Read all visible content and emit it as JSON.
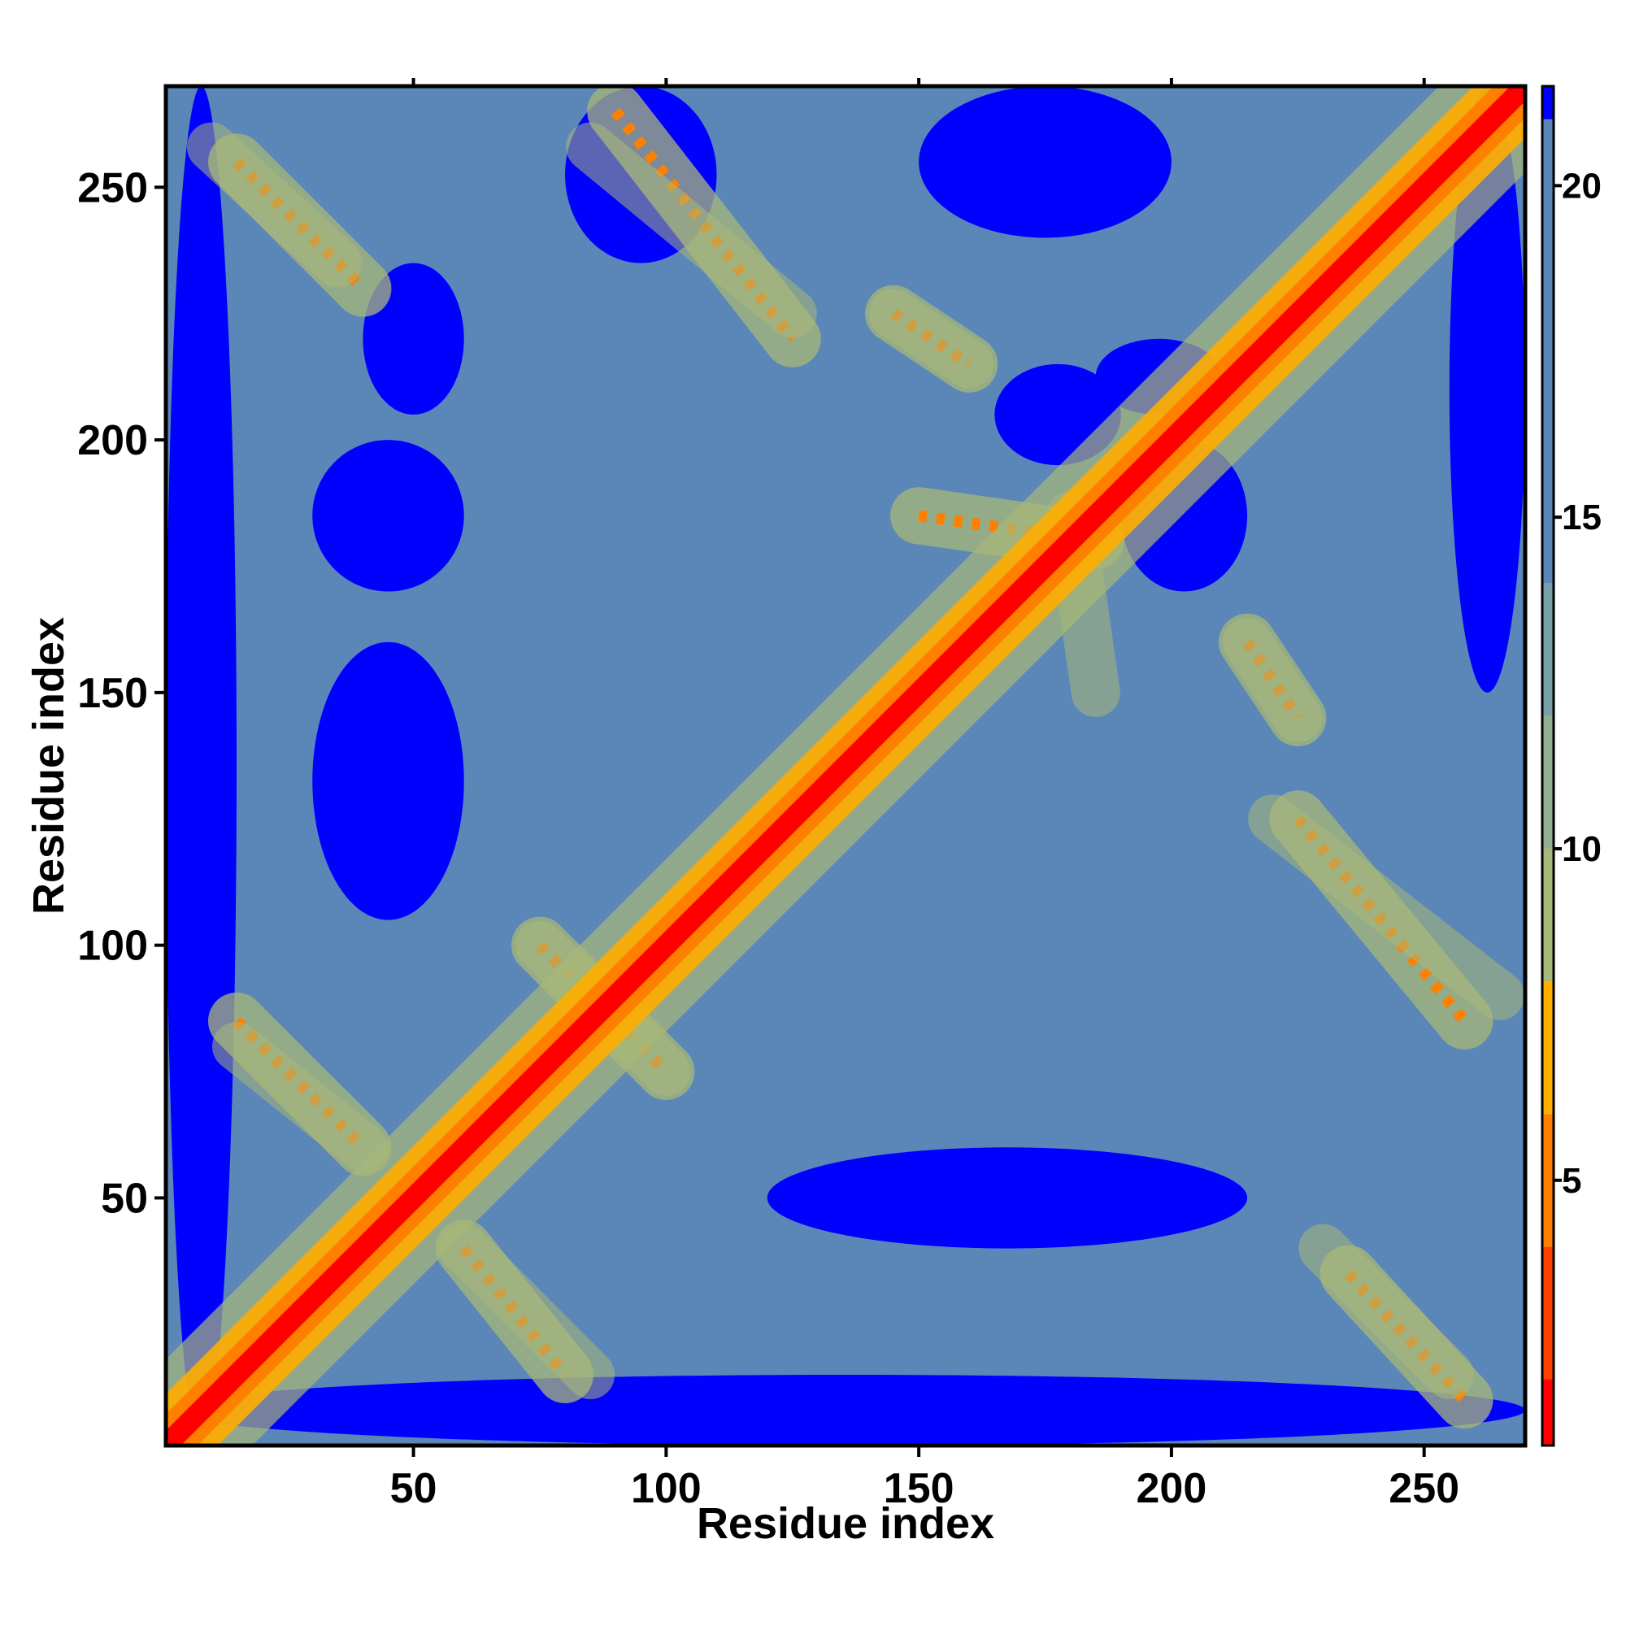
{
  "chart_data": {
    "type": "heatmap",
    "title": "",
    "xlabel": "Residue index",
    "ylabel": "Residue index",
    "xlim": [
      1,
      270
    ],
    "ylim": [
      1,
      270
    ],
    "x_ticks": [
      50,
      100,
      150,
      200,
      250
    ],
    "y_ticks": [
      50,
      100,
      150,
      200,
      250
    ],
    "x_tick_labels": [
      "50",
      "100",
      "150",
      "200",
      "250"
    ],
    "y_tick_labels": [
      "50",
      "100",
      "150",
      "200",
      "250"
    ],
    "colorbar": {
      "range": [
        1,
        21.5
      ],
      "ticks": [
        5,
        10,
        15,
        20
      ],
      "tick_labels": [
        "5",
        "10",
        "15",
        "20"
      ],
      "bands": [
        {
          "from": 1,
          "to": 2,
          "color": "#ff0000"
        },
        {
          "from": 2,
          "to": 4,
          "color": "#ff4000"
        },
        {
          "from": 4,
          "to": 6,
          "color": "#ff7f00"
        },
        {
          "from": 6,
          "to": 8,
          "color": "#ffae00"
        },
        {
          "from": 8,
          "to": 10,
          "color": "#a8b878"
        },
        {
          "from": 10,
          "to": 12,
          "color": "#90b090"
        },
        {
          "from": 12,
          "to": 14,
          "color": "#78a0a8"
        },
        {
          "from": 14,
          "to": 21,
          "color": "#5b87b8"
        },
        {
          "from": 21,
          "to": 21.5,
          "color": "#0000ff"
        }
      ]
    },
    "value_meaning": "pairwise residue distance; diagonal ~1 (red), far pairs >21 (blue)",
    "off_diagonal_strands": [
      {
        "x": [
          15,
          40
        ],
        "y": [
          255,
          230
        ]
      },
      {
        "x": [
          90,
          125
        ],
        "y": [
          265,
          220
        ]
      },
      {
        "x": [
          60,
          80
        ],
        "y": [
          40,
          15
        ]
      },
      {
        "x": [
          15,
          40
        ],
        "y": [
          85,
          60
        ]
      },
      {
        "x": [
          225,
          258
        ],
        "y": [
          125,
          85
        ]
      },
      {
        "x": [
          235,
          258
        ],
        "y": [
          35,
          10
        ]
      },
      {
        "x": [
          75,
          100
        ],
        "y": [
          100,
          75
        ]
      },
      {
        "x": [
          145,
          160
        ],
        "y": [
          225,
          215
        ]
      },
      {
        "x": [
          215,
          225
        ],
        "y": [
          160,
          145
        ]
      },
      {
        "x": [
          150,
          185
        ],
        "y": [
          185,
          180
        ]
      }
    ],
    "blue_regions": [
      {
        "x": [
          1,
          15
        ],
        "y": [
          1,
          270
        ]
      },
      {
        "x": [
          1,
          270
        ],
        "y": [
          1,
          15
        ]
      },
      {
        "x": [
          30,
          60
        ],
        "y": [
          105,
          160
        ]
      },
      {
        "x": [
          30,
          60
        ],
        "y": [
          170,
          200
        ]
      },
      {
        "x": [
          40,
          60
        ],
        "y": [
          205,
          235
        ]
      },
      {
        "x": [
          120,
          215
        ],
        "y": [
          40,
          60
        ]
      },
      {
        "x": [
          165,
          190
        ],
        "y": [
          195,
          215
        ]
      },
      {
        "x": [
          190,
          215
        ],
        "y": [
          170,
          200
        ]
      },
      {
        "x": [
          185,
          210
        ],
        "y": [
          205,
          220
        ]
      },
      {
        "x": [
          255,
          270
        ],
        "y": [
          150,
          270
        ]
      },
      {
        "x": [
          150,
          200
        ],
        "y": [
          240,
          270
        ]
      },
      {
        "x": [
          80,
          110
        ],
        "y": [
          235,
          270
        ]
      }
    ]
  }
}
